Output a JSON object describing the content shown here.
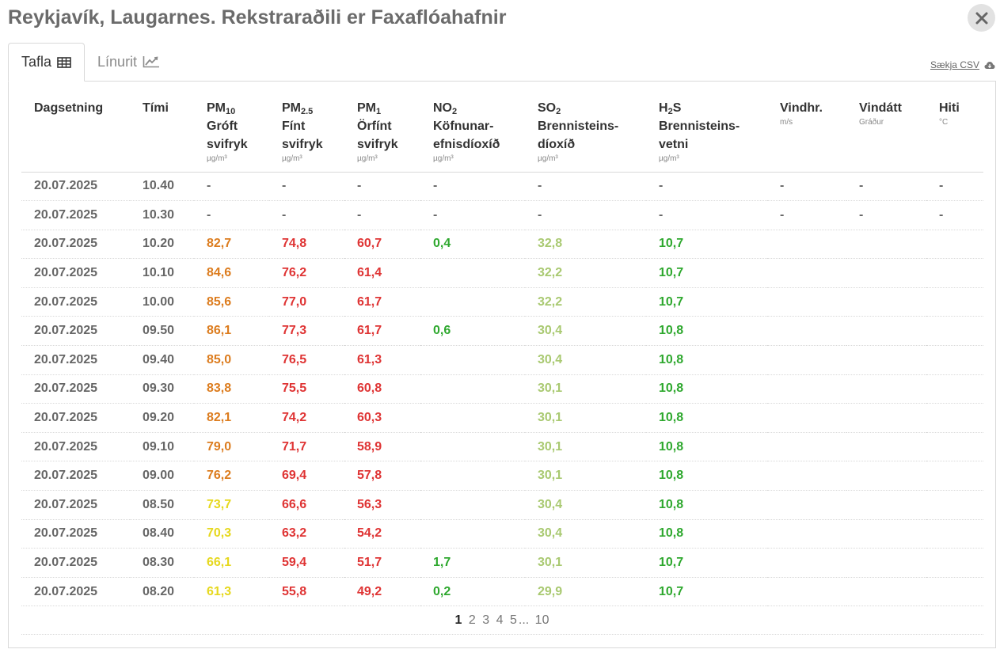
{
  "title": "Reykjavík, Laugarnes. Rekstraraðili er Faxaflóahafnir",
  "tabs": [
    {
      "label": "Tafla",
      "icon": "table-icon",
      "active": true
    },
    {
      "label": "Línurit",
      "icon": "line-chart-icon",
      "active": false
    }
  ],
  "csv_label": "Sækja CSV",
  "columns": [
    {
      "key": "date",
      "main": "Dagsetning",
      "sub": "",
      "desc": "",
      "unit": ""
    },
    {
      "key": "time",
      "main": "Tími",
      "sub": "",
      "desc": "",
      "unit": ""
    },
    {
      "key": "pm10",
      "main": "PM",
      "sub": "10",
      "desc": "Gróft svifryk",
      "unit": "µg/m³"
    },
    {
      "key": "pm25",
      "main": "PM",
      "sub": "2.5",
      "desc": "Fínt svifryk",
      "unit": "µg/m³"
    },
    {
      "key": "pm1",
      "main": "PM",
      "sub": "1",
      "desc": "Örfínt svifryk",
      "unit": "µg/m³"
    },
    {
      "key": "no2",
      "main": "NO",
      "sub": "2",
      "desc": "Köfnunar-efnisdíoxíð",
      "unit": "µg/m³"
    },
    {
      "key": "so2",
      "main": "SO",
      "sub": "2",
      "desc": "Brennisteins-díoxíð",
      "unit": "µg/m³"
    },
    {
      "key": "h2s",
      "main": "H",
      "sub": "2",
      "main_tail": "S",
      "desc": "Brennisteins-vetni",
      "unit": "µg/m³"
    },
    {
      "key": "wind_speed",
      "main": "Vindhr.",
      "sub": "",
      "desc": "",
      "unit": "m/s"
    },
    {
      "key": "wind_dir",
      "main": "Vindátt",
      "sub": "",
      "desc": "",
      "unit": "Gráður"
    },
    {
      "key": "temp",
      "main": "Hiti",
      "sub": "",
      "desc": "",
      "unit": "°C"
    }
  ],
  "colors": {
    "orange": "#dc7c1e",
    "yellow": "#e6d81e",
    "red": "#df3434",
    "green": "#2ea82e",
    "lgreen": "#a9c971"
  },
  "rows": [
    {
      "date": "20.07.2025",
      "time": "10.40",
      "pm10": "-",
      "pm25": "-",
      "pm1": "-",
      "no2": "-",
      "so2": "-",
      "h2s": "-",
      "wind_speed": "-",
      "wind_dir": "-",
      "temp": "-"
    },
    {
      "date": "20.07.2025",
      "time": "10.30",
      "pm10": "-",
      "pm25": "-",
      "pm1": "-",
      "no2": "-",
      "so2": "-",
      "h2s": "-",
      "wind_speed": "-",
      "wind_dir": "-",
      "temp": "-"
    },
    {
      "date": "20.07.2025",
      "time": "10.20",
      "pm10": "82,7",
      "pm10_c": "orange",
      "pm25": "74,8",
      "pm25_c": "red",
      "pm1": "60,7",
      "pm1_c": "red",
      "no2": "0,4",
      "no2_c": "green",
      "so2": "32,8",
      "so2_c": "lgreen",
      "h2s": "10,7",
      "h2s_c": "green",
      "wind_speed": "",
      "wind_dir": "",
      "temp": ""
    },
    {
      "date": "20.07.2025",
      "time": "10.10",
      "pm10": "84,6",
      "pm10_c": "orange",
      "pm25": "76,2",
      "pm25_c": "red",
      "pm1": "61,4",
      "pm1_c": "red",
      "no2": "",
      "so2": "32,2",
      "so2_c": "lgreen",
      "h2s": "10,7",
      "h2s_c": "green",
      "wind_speed": "",
      "wind_dir": "",
      "temp": ""
    },
    {
      "date": "20.07.2025",
      "time": "10.00",
      "pm10": "85,6",
      "pm10_c": "orange",
      "pm25": "77,0",
      "pm25_c": "red",
      "pm1": "61,7",
      "pm1_c": "red",
      "no2": "",
      "so2": "32,2",
      "so2_c": "lgreen",
      "h2s": "10,7",
      "h2s_c": "green",
      "wind_speed": "",
      "wind_dir": "",
      "temp": ""
    },
    {
      "date": "20.07.2025",
      "time": "09.50",
      "pm10": "86,1",
      "pm10_c": "orange",
      "pm25": "77,3",
      "pm25_c": "red",
      "pm1": "61,7",
      "pm1_c": "red",
      "no2": "0,6",
      "no2_c": "green",
      "so2": "30,4",
      "so2_c": "lgreen",
      "h2s": "10,8",
      "h2s_c": "green",
      "wind_speed": "",
      "wind_dir": "",
      "temp": ""
    },
    {
      "date": "20.07.2025",
      "time": "09.40",
      "pm10": "85,0",
      "pm10_c": "orange",
      "pm25": "76,5",
      "pm25_c": "red",
      "pm1": "61,3",
      "pm1_c": "red",
      "no2": "",
      "so2": "30,4",
      "so2_c": "lgreen",
      "h2s": "10,8",
      "h2s_c": "green",
      "wind_speed": "",
      "wind_dir": "",
      "temp": ""
    },
    {
      "date": "20.07.2025",
      "time": "09.30",
      "pm10": "83,8",
      "pm10_c": "orange",
      "pm25": "75,5",
      "pm25_c": "red",
      "pm1": "60,8",
      "pm1_c": "red",
      "no2": "",
      "so2": "30,1",
      "so2_c": "lgreen",
      "h2s": "10,8",
      "h2s_c": "green",
      "wind_speed": "",
      "wind_dir": "",
      "temp": ""
    },
    {
      "date": "20.07.2025",
      "time": "09.20",
      "pm10": "82,1",
      "pm10_c": "orange",
      "pm25": "74,2",
      "pm25_c": "red",
      "pm1": "60,3",
      "pm1_c": "red",
      "no2": "",
      "so2": "30,1",
      "so2_c": "lgreen",
      "h2s": "10,8",
      "h2s_c": "green",
      "wind_speed": "",
      "wind_dir": "",
      "temp": ""
    },
    {
      "date": "20.07.2025",
      "time": "09.10",
      "pm10": "79,0",
      "pm10_c": "orange",
      "pm25": "71,7",
      "pm25_c": "red",
      "pm1": "58,9",
      "pm1_c": "red",
      "no2": "",
      "so2": "30,1",
      "so2_c": "lgreen",
      "h2s": "10,8",
      "h2s_c": "green",
      "wind_speed": "",
      "wind_dir": "",
      "temp": ""
    },
    {
      "date": "20.07.2025",
      "time": "09.00",
      "pm10": "76,2",
      "pm10_c": "orange",
      "pm25": "69,4",
      "pm25_c": "red",
      "pm1": "57,8",
      "pm1_c": "red",
      "no2": "",
      "so2": "30,1",
      "so2_c": "lgreen",
      "h2s": "10,8",
      "h2s_c": "green",
      "wind_speed": "",
      "wind_dir": "",
      "temp": ""
    },
    {
      "date": "20.07.2025",
      "time": "08.50",
      "pm10": "73,7",
      "pm10_c": "yellow",
      "pm25": "66,6",
      "pm25_c": "red",
      "pm1": "56,3",
      "pm1_c": "red",
      "no2": "",
      "so2": "30,4",
      "so2_c": "lgreen",
      "h2s": "10,8",
      "h2s_c": "green",
      "wind_speed": "",
      "wind_dir": "",
      "temp": ""
    },
    {
      "date": "20.07.2025",
      "time": "08.40",
      "pm10": "70,3",
      "pm10_c": "yellow",
      "pm25": "63,2",
      "pm25_c": "red",
      "pm1": "54,2",
      "pm1_c": "red",
      "no2": "",
      "so2": "30,4",
      "so2_c": "lgreen",
      "h2s": "10,8",
      "h2s_c": "green",
      "wind_speed": "",
      "wind_dir": "",
      "temp": ""
    },
    {
      "date": "20.07.2025",
      "time": "08.30",
      "pm10": "66,1",
      "pm10_c": "yellow",
      "pm25": "59,4",
      "pm25_c": "red",
      "pm1": "51,7",
      "pm1_c": "red",
      "no2": "1,7",
      "no2_c": "green",
      "so2": "30,1",
      "so2_c": "lgreen",
      "h2s": "10,7",
      "h2s_c": "green",
      "wind_speed": "",
      "wind_dir": "",
      "temp": ""
    },
    {
      "date": "20.07.2025",
      "time": "08.20",
      "pm10": "61,3",
      "pm10_c": "yellow",
      "pm25": "55,8",
      "pm25_c": "red",
      "pm1": "49,2",
      "pm1_c": "red",
      "no2": "0,2",
      "no2_c": "green",
      "so2": "29,9",
      "so2_c": "lgreen",
      "h2s": "10,7",
      "h2s_c": "green",
      "wind_speed": "",
      "wind_dir": "",
      "temp": ""
    }
  ],
  "pagination": {
    "current": "1",
    "pages": [
      "2",
      "3",
      "4",
      "5"
    ],
    "ellipsis": "...",
    "last": "10"
  }
}
